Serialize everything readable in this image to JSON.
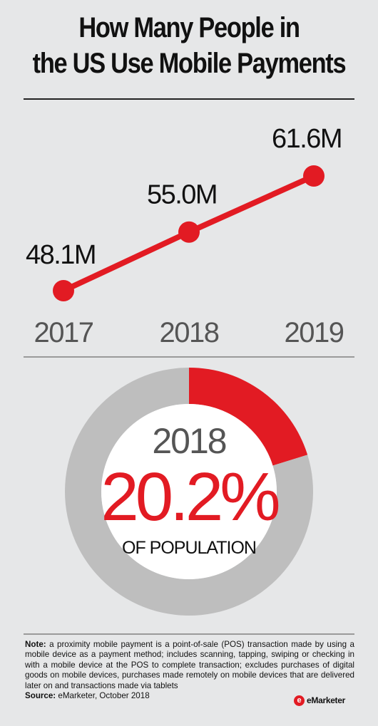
{
  "title": {
    "line1": "How Many People in",
    "line2": "the US Use Mobile Payments"
  },
  "colors": {
    "accent": "#e21b23",
    "ring_bg": "#bebebe",
    "background": "#e6e7e8"
  },
  "chart_data": [
    {
      "type": "line",
      "categories": [
        "2017",
        "2018",
        "2019"
      ],
      "series": [
        {
          "values": [
            48.1,
            55.0,
            61.6
          ],
          "labels": [
            "48.1M",
            "55.0M",
            "61.6M"
          ]
        }
      ],
      "grid": false,
      "legend": "none"
    },
    {
      "type": "pie",
      "year": "2018",
      "value_label": "20.2%",
      "caption": "OF POPULATION",
      "slices": [
        {
          "value": 20.2,
          "color": "#e21b23"
        },
        {
          "value": 79.8,
          "color": "#bebebe"
        }
      ]
    }
  ],
  "notes": {
    "note_label": "Note:",
    "note_text": " a proximity mobile payment is a point-of-sale (POS) transaction made by using a mobile device as a payment method; includes scanning, tapping, swiping or checking in with a mobile device at the POS to complete transaction; excludes purchases of digital goods on mobile devices, purchases made remotely on mobile devices that are delivered later on and transactions made via tablets",
    "source_label": "Source:",
    "source_text": " eMarketer, October 2018"
  },
  "brand": {
    "mark": "e",
    "name": "eMarketer"
  }
}
